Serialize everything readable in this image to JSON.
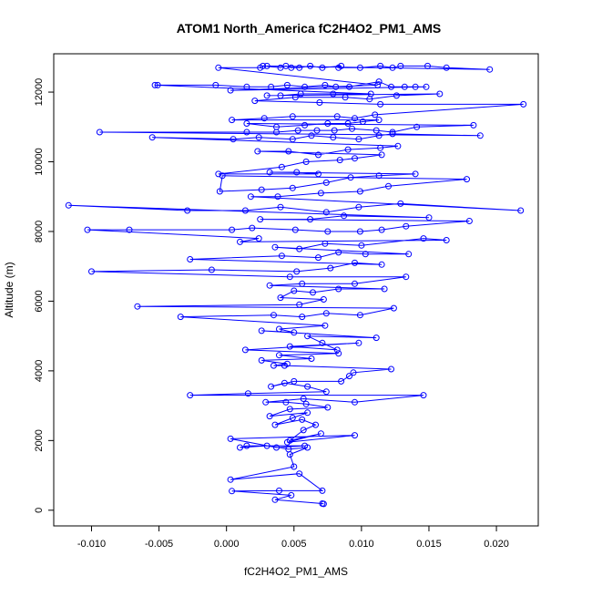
{
  "chart_data": {
    "type": "scatter",
    "title": "ATOM1 North_America fC2H4O2_PM1_AMS",
    "xlabel": "fC2H4O2_PM1_AMS",
    "ylabel": "Altitude (m)",
    "xlim": [
      -0.0128,
      0.0231
    ],
    "ylim": [
      -450,
      13100
    ],
    "xticks": [
      -0.01,
      -0.005,
      0.0,
      0.005,
      0.01,
      0.015,
      0.02
    ],
    "xtick_labels": [
      "-0.010",
      "-0.005",
      "0.000",
      "0.005",
      "0.010",
      "0.015",
      "0.020"
    ],
    "yticks": [
      0,
      2000,
      4000,
      6000,
      8000,
      10000,
      12000
    ],
    "ytick_labels": [
      "0",
      "2000",
      "4000",
      "6000",
      "8000",
      "10000",
      "12000"
    ],
    "grid": false,
    "legend": "none",
    "color": "#0000ff",
    "series": [
      {
        "points": [
          [
            0.0072,
            180
          ],
          [
            0.0071,
            190
          ],
          [
            0.0036,
            300
          ],
          [
            0.0048,
            430
          ],
          [
            0.0004,
            550
          ],
          [
            0.0039,
            560
          ],
          [
            0.0071,
            560
          ],
          [
            0.0054,
            1050
          ],
          [
            0.0003,
            880
          ],
          [
            0.005,
            1250
          ],
          [
            0.0047,
            1600
          ],
          [
            0.006,
            1800
          ],
          [
            0.0046,
            1750
          ],
          [
            0.003,
            1850
          ],
          [
            0.001,
            1800
          ],
          [
            0.0015,
            1850
          ],
          [
            0.0058,
            1850
          ],
          [
            0.0037,
            1800
          ],
          [
            0.0003,
            2050
          ],
          [
            0.0095,
            2150
          ],
          [
            0.0045,
            1950
          ],
          [
            0.007,
            2200
          ],
          [
            0.0047,
            2000
          ],
          [
            0.0057,
            2300
          ],
          [
            0.0066,
            2450
          ],
          [
            0.0056,
            2600
          ],
          [
            0.0036,
            2450
          ],
          [
            0.0049,
            2650
          ],
          [
            0.006,
            2800
          ],
          [
            0.0032,
            2700
          ],
          [
            0.0047,
            2900
          ],
          [
            0.0075,
            2950
          ],
          [
            0.0059,
            3050
          ],
          [
            0.0044,
            3100
          ],
          [
            0.0029,
            3100
          ],
          [
            0.0057,
            3200
          ],
          [
            0.0095,
            3100
          ],
          [
            0.0146,
            3300
          ],
          [
            -0.0027,
            3300
          ],
          [
            0.0016,
            3350
          ],
          [
            0.0074,
            3400
          ],
          [
            0.006,
            3550
          ],
          [
            0.0043,
            3650
          ],
          [
            0.0033,
            3550
          ],
          [
            0.005,
            3700
          ],
          [
            0.0085,
            3700
          ],
          [
            0.0091,
            3850
          ],
          [
            0.0094,
            3950
          ],
          [
            0.0122,
            4050
          ],
          [
            0.0043,
            4150
          ],
          [
            0.0035,
            4150
          ],
          [
            0.0045,
            4200
          ],
          [
            0.0026,
            4300
          ],
          [
            0.0063,
            4350
          ],
          [
            0.0039,
            4450
          ],
          [
            0.0083,
            4500
          ],
          [
            0.0014,
            4600
          ],
          [
            0.0098,
            4800
          ],
          [
            0.0047,
            4700
          ],
          [
            0.0082,
            4600
          ],
          [
            0.0071,
            4800
          ],
          [
            0.006,
            5000
          ],
          [
            0.0111,
            4950
          ],
          [
            0.0026,
            5150
          ],
          [
            0.005,
            5100
          ],
          [
            0.0039,
            5200
          ],
          [
            0.0073,
            5300
          ],
          [
            -0.0034,
            5550
          ],
          [
            0.0035,
            5600
          ],
          [
            0.0056,
            5550
          ],
          [
            0.0074,
            5650
          ],
          [
            0.0099,
            5600
          ],
          [
            0.0124,
            5800
          ],
          [
            -0.0066,
            5850
          ],
          [
            0.0054,
            5900
          ],
          [
            0.0072,
            6050
          ],
          [
            0.004,
            6100
          ],
          [
            0.005,
            6300
          ],
          [
            0.0064,
            6250
          ],
          [
            0.0083,
            6350
          ],
          [
            0.0117,
            6350
          ],
          [
            0.0032,
            6450
          ],
          [
            0.0056,
            6500
          ],
          [
            0.0095,
            6500
          ],
          [
            0.0133,
            6700
          ],
          [
            0.0047,
            6700
          ],
          [
            -0.01,
            6850
          ],
          [
            -0.0011,
            6900
          ],
          [
            0.0052,
            6850
          ],
          [
            0.0077,
            6950
          ],
          [
            0.0095,
            7100
          ],
          [
            0.0115,
            7050
          ],
          [
            -0.0027,
            7200
          ],
          [
            0.0041,
            7300
          ],
          [
            0.0068,
            7250
          ],
          [
            0.0083,
            7400
          ],
          [
            0.0103,
            7350
          ],
          [
            0.0135,
            7350
          ],
          [
            0.0036,
            7550
          ],
          [
            0.0054,
            7500
          ],
          [
            0.0073,
            7650
          ],
          [
            0.01,
            7600
          ],
          [
            0.0146,
            7800
          ],
          [
            0.0163,
            7750
          ],
          [
            0.001,
            7700
          ],
          [
            0.0024,
            7800
          ],
          [
            -0.0103,
            8050
          ],
          [
            -0.0072,
            8050
          ],
          [
            0.0004,
            8050
          ],
          [
            0.0019,
            8100
          ],
          [
            0.0051,
            8050
          ],
          [
            0.0075,
            8000
          ],
          [
            0.0099,
            8000
          ],
          [
            0.0115,
            8050
          ],
          [
            0.0133,
            8150
          ],
          [
            0.018,
            8300
          ],
          [
            0.0025,
            8350
          ],
          [
            0.0062,
            8350
          ],
          [
            0.0087,
            8450
          ],
          [
            0.015,
            8400
          ],
          [
            -0.0117,
            8750
          ],
          [
            -0.0029,
            8600
          ],
          [
            0.0014,
            8600
          ],
          [
            0.004,
            8700
          ],
          [
            0.0074,
            8550
          ],
          [
            0.0098,
            8700
          ],
          [
            0.0129,
            8800
          ],
          [
            0.0218,
            8600
          ],
          [
            0.0018,
            9000
          ],
          [
            0.0038,
            9000
          ],
          [
            0.007,
            9100
          ],
          [
            0.0099,
            9150
          ],
          [
            0.012,
            9300
          ],
          [
            0.0178,
            9500
          ],
          [
            -0.0003,
            9600
          ],
          [
            -0.0005,
            9150
          ],
          [
            0.0026,
            9200
          ],
          [
            0.0049,
            9250
          ],
          [
            0.0074,
            9400
          ],
          [
            0.0092,
            9550
          ],
          [
            0.0113,
            9600
          ],
          [
            0.014,
            9650
          ],
          [
            0.0032,
            9700
          ],
          [
            0.0052,
            9700
          ],
          [
            0.0068,
            9650
          ],
          [
            -0.0006,
            9650
          ],
          [
            0.0041,
            9850
          ],
          [
            0.0059,
            10000
          ],
          [
            0.0084,
            10050
          ],
          [
            0.0095,
            10100
          ],
          [
            0.0115,
            10200
          ],
          [
            0.0023,
            10300
          ],
          [
            0.0046,
            10300
          ],
          [
            0.0068,
            10200
          ],
          [
            0.009,
            10350
          ],
          [
            0.0114,
            10400
          ],
          [
            0.0127,
            10450
          ],
          [
            -0.0055,
            10700
          ],
          [
            0.0005,
            10650
          ],
          [
            0.0024,
            10700
          ],
          [
            0.0049,
            10650
          ],
          [
            0.0063,
            10750
          ],
          [
            0.0079,
            10700
          ],
          [
            0.0098,
            10650
          ],
          [
            0.0113,
            10750
          ],
          [
            0.0123,
            10800
          ],
          [
            0.0188,
            10750
          ],
          [
            -0.0094,
            10850
          ],
          [
            0.0015,
            10850
          ],
          [
            0.0037,
            10850
          ],
          [
            0.0053,
            10900
          ],
          [
            0.0067,
            10900
          ],
          [
            0.008,
            10900
          ],
          [
            0.0093,
            10950
          ],
          [
            0.0111,
            10900
          ],
          [
            0.0123,
            10850
          ],
          [
            0.0141,
            11000
          ],
          [
            0.0183,
            11050
          ],
          [
            0.0015,
            11100
          ],
          [
            0.0037,
            11000
          ],
          [
            0.0058,
            11050
          ],
          [
            0.0075,
            11100
          ],
          [
            0.009,
            11100
          ],
          [
            0.0101,
            11150
          ],
          [
            0.0113,
            11200
          ],
          [
            0.0004,
            11200
          ],
          [
            0.0028,
            11250
          ],
          [
            0.0049,
            11300
          ],
          [
            0.0082,
            11300
          ],
          [
            0.0095,
            11250
          ],
          [
            0.011,
            11350
          ],
          [
            0.022,
            11650
          ],
          [
            0.0114,
            11650
          ],
          [
            0.0069,
            11700
          ],
          [
            0.0021,
            11750
          ],
          [
            0.0051,
            11850
          ],
          [
            0.0088,
            11850
          ],
          [
            0.0106,
            11800
          ],
          [
            0.0126,
            11900
          ],
          [
            0.0158,
            11950
          ],
          [
            0.003,
            11900
          ],
          [
            0.004,
            11900
          ],
          [
            0.0055,
            11950
          ],
          [
            0.0079,
            11950
          ],
          [
            0.0107,
            11950
          ],
          [
            -0.0053,
            12200
          ],
          [
            -0.0051,
            12200
          ],
          [
            -0.0008,
            12200
          ],
          [
            0.0015,
            12150
          ],
          [
            0.0033,
            12150
          ],
          [
            0.0045,
            12200
          ],
          [
            0.0058,
            12150
          ],
          [
            0.0073,
            12200
          ],
          [
            0.0081,
            12150
          ],
          [
            0.0091,
            12150
          ],
          [
            0.0113,
            12300
          ],
          [
            0.0122,
            12150
          ],
          [
            0.0132,
            12150
          ],
          [
            0.014,
            12150
          ],
          [
            0.0148,
            12150
          ],
          [
            0.0003,
            12050
          ],
          [
            0.0112,
            12200
          ],
          [
            -0.0006,
            12700
          ],
          [
            0.0025,
            12700
          ],
          [
            0.0027,
            12750
          ],
          [
            0.004,
            12700
          ],
          [
            0.0044,
            12750
          ],
          [
            0.0048,
            12700
          ],
          [
            0.0054,
            12700
          ],
          [
            0.0062,
            12750
          ],
          [
            0.0071,
            12700
          ],
          [
            0.0085,
            12750
          ],
          [
            0.0083,
            12700
          ],
          [
            0.0099,
            12700
          ],
          [
            0.0114,
            12750
          ],
          [
            0.0123,
            12700
          ],
          [
            0.0129,
            12750
          ],
          [
            0.0149,
            12750
          ],
          [
            0.0163,
            12700
          ],
          [
            0.0195,
            12650
          ],
          [
            0.003,
            12750
          ]
        ]
      }
    ]
  }
}
